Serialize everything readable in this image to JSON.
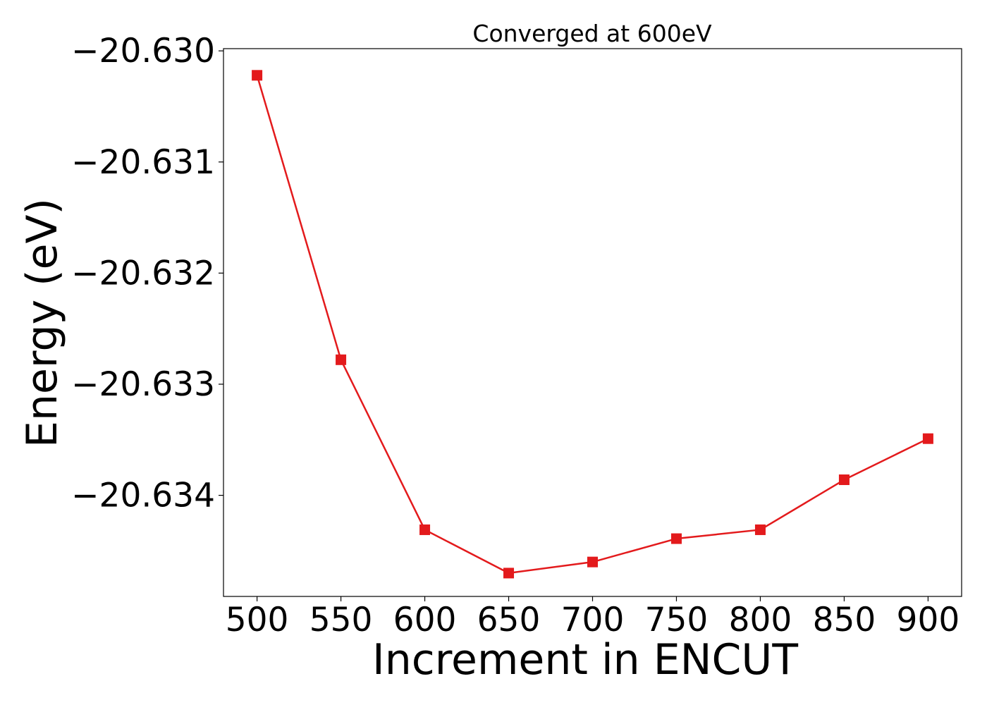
{
  "chart_data": {
    "type": "line",
    "title": "Converged at 600eV",
    "xlabel": "Increment in ENCUT",
    "ylabel": "Energy (eV)",
    "x": [
      500,
      550,
      600,
      650,
      700,
      750,
      800,
      850,
      900
    ],
    "series": [
      {
        "values": [
          -20.63022,
          -20.63278,
          -20.63431,
          -20.6347,
          -20.6346,
          -20.63439,
          -20.63431,
          -20.63386,
          -20.63349
        ],
        "color": "#e31a1c",
        "marker": "square"
      }
    ],
    "xticks": [
      500,
      550,
      600,
      650,
      700,
      750,
      800,
      850,
      900
    ],
    "xtick_labels": [
      "500",
      "550",
      "600",
      "650",
      "700",
      "750",
      "800",
      "850",
      "900"
    ],
    "yticks": [
      -20.63,
      -20.631,
      -20.632,
      -20.633,
      -20.634
    ],
    "ytick_labels": [
      "−20.630",
      "−20.631",
      "−20.632",
      "−20.633",
      "−20.634"
    ],
    "xlim": [
      480,
      920
    ],
    "ylim": [
      -20.63491,
      -20.62998
    ],
    "grid": false,
    "legend": "none"
  }
}
